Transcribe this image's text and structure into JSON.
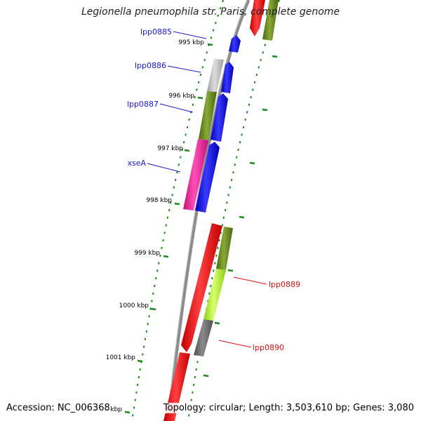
{
  "title": "Legionella pneumophila str. Paris, complete genome",
  "footer": {
    "accession": "Accession: NC_006368",
    "summary": "Topology: circular; Length: 3,503,610 bp; Genes: 3,080"
  },
  "colors": {
    "backbone": "#8c8c8c",
    "ticks": "#1a8a1a",
    "plus_label": "#1a1acc",
    "minus_label": "#e01010"
  },
  "ticks": [
    "995 kbp",
    "996 kbp",
    "997 kbp",
    "998 kbp",
    "999 kbp",
    "1000 kbp",
    "1001 kbp",
    "1002 kbp"
  ],
  "genes": [
    {
      "id": "lpp0885",
      "label": "lpp0885",
      "strand": "plus"
    },
    {
      "id": "lpp0886",
      "label": "lpp0886",
      "strand": "plus"
    },
    {
      "id": "lpp0887",
      "label": "lpp0887",
      "strand": "plus"
    },
    {
      "id": "xseA",
      "label": "xseA",
      "strand": "plus"
    },
    {
      "id": "lpp0889",
      "label": "lpp0889",
      "strand": "minus"
    },
    {
      "id": "lpp0890",
      "label": "lpp0890",
      "strand": "minus"
    }
  ]
}
